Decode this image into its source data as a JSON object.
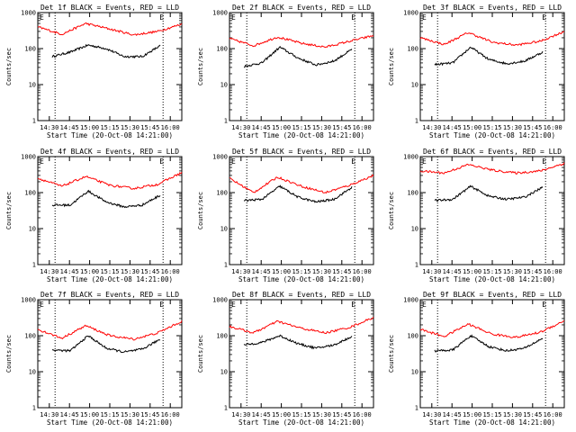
{
  "chart_data": [
    {
      "type": "line",
      "title": "Det 1f BLACK = Events, RED = LLD",
      "xlabel": "Start Time (20-Oct-08 14:21:00)",
      "ylabel": "Counts/sec",
      "x_ticks": [
        "14:30",
        "14:45",
        "15:00",
        "15:15",
        "15:30",
        "15:45",
        "16:00"
      ],
      "y_ticks": [
        "1",
        "10",
        "100",
        "1000"
      ],
      "ylim": [
        1,
        1000
      ],
      "y_scale": "log",
      "marker_labels": [
        "E",
        "E"
      ],
      "series": [
        {
          "color": "#000000",
          "values": [
            60,
            80,
            125,
            100,
            60,
            60,
            120
          ]
        },
        {
          "color": "#ff0000",
          "values": [
            400,
            250,
            500,
            350,
            240,
            300,
            480
          ]
        }
      ]
    },
    {
      "type": "line",
      "title": "Det 2f BLACK = Events, RED = LLD",
      "xlabel": "Start Time (20-Oct-08 14:21:00)",
      "ylabel": "Counts/sec",
      "x_ticks": [
        "14:30",
        "14:45",
        "15:00",
        "15:15",
        "15:30",
        "15:45",
        "16:00"
      ],
      "y_ticks": [
        "1",
        "10",
        "100",
        "1000"
      ],
      "ylim": [
        1,
        1000
      ],
      "y_scale": "log",
      "marker_labels": [
        "E",
        "E"
      ],
      "series": [
        {
          "color": "#000000",
          "values": [
            32,
            40,
            110,
            55,
            35,
            45,
            95
          ]
        },
        {
          "color": "#ff0000",
          "values": [
            190,
            120,
            210,
            140,
            110,
            160,
            230
          ]
        }
      ]
    },
    {
      "type": "line",
      "title": "Det 3f BLACK = Events, RED = LLD",
      "xlabel": "Start Time (20-Oct-08 14:21:00)",
      "ylabel": "Counts/sec",
      "x_ticks": [
        "14:30",
        "14:45",
        "15:00",
        "15:15",
        "15:30",
        "15:45",
        "16:00"
      ],
      "y_ticks": [
        "1",
        "10",
        "100",
        "1000"
      ],
      "ylim": [
        1,
        1000
      ],
      "y_scale": "log",
      "marker_labels": [
        "E",
        "E"
      ],
      "series": [
        {
          "color": "#000000",
          "values": [
            36,
            40,
            110,
            50,
            38,
            45,
            80
          ]
        },
        {
          "color": "#ff0000",
          "values": [
            200,
            130,
            280,
            150,
            125,
            160,
            300
          ]
        }
      ]
    },
    {
      "type": "line",
      "title": "Det 4f BLACK = Events, RED = LLD",
      "xlabel": "Start Time (20-Oct-08 14:21:00)",
      "ylabel": "Counts/sec",
      "x_ticks": [
        "14:30",
        "14:45",
        "15:00",
        "15:15",
        "15:30",
        "15:45",
        "16:00"
      ],
      "y_ticks": [
        "1",
        "10",
        "100",
        "1000"
      ],
      "ylim": [
        1,
        1000
      ],
      "y_scale": "log",
      "marker_labels": [
        "E",
        "E"
      ],
      "series": [
        {
          "color": "#000000",
          "values": [
            45,
            45,
            110,
            55,
            40,
            45,
            85
          ]
        },
        {
          "color": "#ff0000",
          "values": [
            250,
            150,
            280,
            160,
            130,
            170,
            360
          ]
        }
      ]
    },
    {
      "type": "line",
      "title": "Det 5f BLACK = Events, RED = LLD",
      "xlabel": "Start Time (20-Oct-08 14:21:00)",
      "ylabel": "Counts/sec",
      "x_ticks": [
        "14:30",
        "14:45",
        "15:00",
        "15:15",
        "15:30",
        "15:45",
        "16:00"
      ],
      "y_ticks": [
        "1",
        "10",
        "100",
        "1000"
      ],
      "ylim": [
        1,
        1000
      ],
      "y_scale": "log",
      "marker_labels": [
        "E",
        "E"
      ],
      "series": [
        {
          "color": "#000000",
          "values": [
            60,
            65,
            150,
            75,
            55,
            65,
            140
          ]
        },
        {
          "color": "#ff0000",
          "values": [
            250,
            100,
            270,
            150,
            100,
            160,
            300
          ]
        }
      ]
    },
    {
      "type": "line",
      "title": "Det 6f BLACK = Events, RED = LLD",
      "xlabel": "Start Time (20-Oct-08 14:21:00)",
      "ylabel": "Counts/sec",
      "x_ticks": [
        "14:30",
        "14:45",
        "15:00",
        "15:15",
        "15:30",
        "15:45",
        "16:00"
      ],
      "y_ticks": [
        "1",
        "10",
        "100",
        "1000"
      ],
      "ylim": [
        1,
        1000
      ],
      "y_scale": "log",
      "marker_labels": [
        "E",
        "E"
      ],
      "series": [
        {
          "color": "#000000",
          "values": [
            60,
            65,
            150,
            80,
            65,
            75,
            140
          ]
        },
        {
          "color": "#ff0000",
          "values": [
            400,
            350,
            600,
            420,
            350,
            400,
            650
          ]
        }
      ]
    },
    {
      "type": "line",
      "title": "Det 7f BLACK = Events, RED = LLD",
      "xlabel": "Start Time (20-Oct-08 14:21:00)",
      "ylabel": "Counts/sec",
      "x_ticks": [
        "14:30",
        "14:45",
        "15:00",
        "15:15",
        "15:30",
        "15:45",
        "16:00"
      ],
      "y_ticks": [
        "1",
        "10",
        "100",
        "1000"
      ],
      "ylim": [
        1,
        1000
      ],
      "y_scale": "log",
      "marker_labels": [
        "E",
        "E"
      ],
      "series": [
        {
          "color": "#000000",
          "values": [
            40,
            38,
            100,
            45,
            35,
            42,
            80
          ]
        },
        {
          "color": "#ff0000",
          "values": [
            150,
            85,
            190,
            100,
            80,
            120,
            250
          ]
        }
      ]
    },
    {
      "type": "line",
      "title": "Det 8f BLACK = Events, RED = LLD",
      "xlabel": "Start Time (20-Oct-08 14:21:00)",
      "ylabel": "Counts/sec",
      "x_ticks": [
        "14:30",
        "14:45",
        "15:00",
        "15:15",
        "15:30",
        "15:45",
        "16:00"
      ],
      "y_ticks": [
        "1",
        "10",
        "100",
        "1000"
      ],
      "ylim": [
        1,
        1000
      ],
      "y_scale": "log",
      "marker_labels": [
        "E",
        "E"
      ],
      "series": [
        {
          "color": "#000000",
          "values": [
            55,
            65,
            100,
            60,
            45,
            55,
            95
          ]
        },
        {
          "color": "#ff0000",
          "values": [
            180,
            120,
            250,
            160,
            120,
            170,
            320
          ]
        }
      ]
    },
    {
      "type": "line",
      "title": "Det 9f BLACK = Events, RED = LLD",
      "xlabel": "Start Time (20-Oct-08 14:21:00)",
      "ylabel": "Counts/sec",
      "x_ticks": [
        "14:30",
        "14:45",
        "15:00",
        "15:15",
        "15:30",
        "15:45",
        "16:00"
      ],
      "y_ticks": [
        "1",
        "10",
        "100",
        "1000"
      ],
      "ylim": [
        1,
        1000
      ],
      "y_scale": "log",
      "marker_labels": [
        "E",
        "E"
      ],
      "series": [
        {
          "color": "#000000",
          "values": [
            38,
            40,
            100,
            50,
            38,
            45,
            85
          ]
        },
        {
          "color": "#ff0000",
          "values": [
            150,
            95,
            210,
            110,
            90,
            125,
            260
          ]
        }
      ]
    }
  ]
}
